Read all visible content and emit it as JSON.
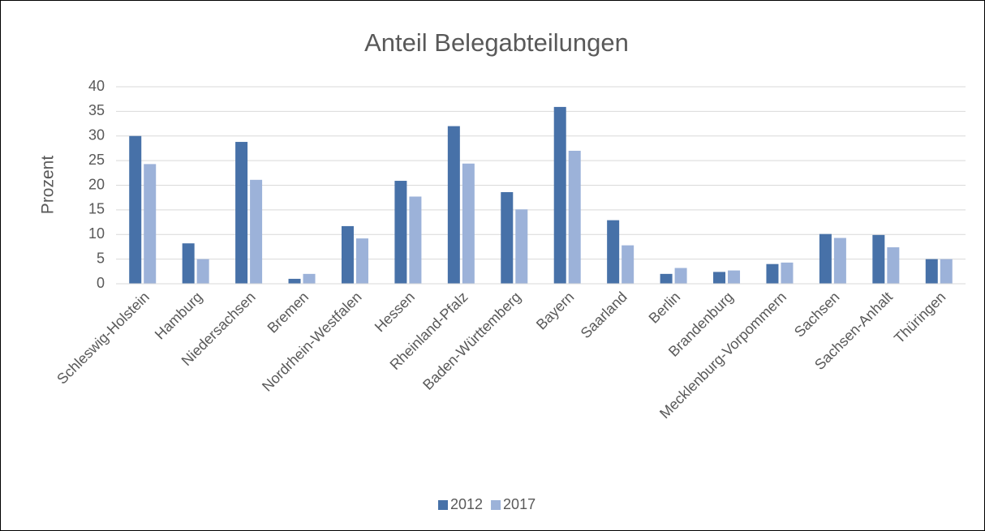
{
  "chart_data": {
    "type": "bar",
    "title": "Anteil Belegabteilungen",
    "y_label": "Prozent",
    "categories": [
      "Schleswig-Holstein",
      "Hamburg",
      "Niedersachsen",
      "Bremen",
      "Nordrhein-Westfalen",
      "Hessen",
      "Rheinland-Pfalz",
      "Baden-Württemberg",
      "Bayern",
      "Saarland",
      "Berlin",
      "Brandenburg",
      "Mecklenburg-Vorpommern",
      "Sachsen",
      "Sachsen-Anhalt",
      "Thüringen"
    ],
    "series": [
      {
        "name": "2012",
        "color": "#4771a8",
        "values": [
          30.0,
          8.2,
          28.8,
          1.0,
          11.7,
          20.9,
          32.0,
          18.6,
          35.9,
          12.9,
          2.0,
          2.4,
          4.0,
          10.1,
          9.9,
          5.0
        ]
      },
      {
        "name": "2017",
        "color": "#9cb2d9",
        "values": [
          24.3,
          5.0,
          21.1,
          2.0,
          9.2,
          17.7,
          24.4,
          15.1,
          27.0,
          7.8,
          3.2,
          2.7,
          4.3,
          9.3,
          7.4,
          5.0
        ]
      }
    ],
    "ylim": [
      0,
      40
    ],
    "yticks": [
      0,
      5,
      10,
      15,
      20,
      25,
      30,
      35,
      40
    ],
    "grid": true,
    "legend": "bottom"
  }
}
